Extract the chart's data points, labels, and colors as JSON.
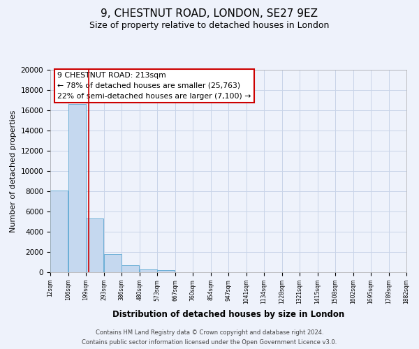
{
  "title": "9, CHESTNUT ROAD, LONDON, SE27 9EZ",
  "subtitle": "Size of property relative to detached houses in London",
  "xlabel": "Distribution of detached houses by size in London",
  "ylabel": "Number of detached properties",
  "bar_left_edges": [
    12,
    106,
    199,
    293,
    386,
    480,
    573,
    667,
    760,
    854,
    947,
    1041,
    1134,
    1228,
    1321,
    1415,
    1508,
    1602,
    1695,
    1789
  ],
  "bar_heights": [
    8100,
    16600,
    5300,
    1800,
    700,
    300,
    200,
    0,
    0,
    0,
    0,
    0,
    0,
    0,
    0,
    0,
    0,
    0,
    0,
    0
  ],
  "bin_width": 93,
  "bar_color": "#c5d8ef",
  "bar_edge_color": "#6aaed6",
  "grid_color": "#c8d4e8",
  "property_line_x": 213,
  "property_line_color": "#cc0000",
  "annotation_title": "9 CHESTNUT ROAD: 213sqm",
  "annotation_line1": "← 78% of detached houses are smaller (25,763)",
  "annotation_line2": "22% of semi-detached houses are larger (7,100) →",
  "xtick_labels": [
    "12sqm",
    "106sqm",
    "199sqm",
    "293sqm",
    "386sqm",
    "480sqm",
    "573sqm",
    "667sqm",
    "760sqm",
    "854sqm",
    "947sqm",
    "1041sqm",
    "1134sqm",
    "1228sqm",
    "1321sqm",
    "1415sqm",
    "1508sqm",
    "1602sqm",
    "1695sqm",
    "1789sqm",
    "1882sqm"
  ],
  "ylim": [
    0,
    20000
  ],
  "yticks": [
    0,
    2000,
    4000,
    6000,
    8000,
    10000,
    12000,
    14000,
    16000,
    18000,
    20000
  ],
  "footer_line1": "Contains HM Land Registry data © Crown copyright and database right 2024.",
  "footer_line2": "Contains public sector information licensed under the Open Government Licence v3.0.",
  "bg_color": "#eef2fb",
  "title_fontsize": 11,
  "subtitle_fontsize": 9
}
